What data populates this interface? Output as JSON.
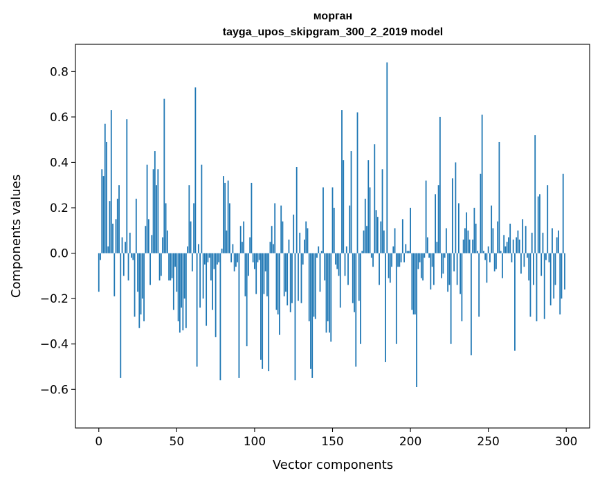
{
  "chart_data": {
    "type": "bar",
    "title": "морган",
    "subtitle": "tayga_upos_skipgram_300_2_2019 model",
    "xlabel": "Vector components",
    "ylabel": "Components values",
    "xlim": [
      -15,
      315
    ],
    "ylim": [
      -0.77,
      0.92
    ],
    "xticks": [
      0,
      50,
      100,
      150,
      200,
      250,
      300
    ],
    "xtick_labels": [
      "0",
      "50",
      "100",
      "150",
      "200",
      "250",
      "300"
    ],
    "yticks": [
      -0.6,
      -0.4,
      -0.2,
      0.0,
      0.2,
      0.4,
      0.6,
      0.8
    ],
    "ytick_labels": [
      "−0.6",
      "−0.4",
      "−0.2",
      "0.0",
      "0.2",
      "0.4",
      "0.6",
      "0.8"
    ],
    "color": "#1f77b4",
    "values": [
      -0.17,
      -0.03,
      0.37,
      0.34,
      0.57,
      0.49,
      0.03,
      0.23,
      0.63,
      0.13,
      -0.19,
      0.15,
      0.24,
      0.3,
      -0.55,
      0.07,
      -0.1,
      0.05,
      0.59,
      -0.12,
      0.09,
      -0.02,
      -0.03,
      -0.28,
      0.24,
      -0.17,
      -0.33,
      -0.27,
      -0.2,
      -0.3,
      0.12,
      0.39,
      0.15,
      -0.14,
      0.08,
      0.37,
      0.45,
      0.3,
      0.37,
      -0.12,
      -0.1,
      0.07,
      0.68,
      0.22,
      0.1,
      -0.12,
      -0.12,
      -0.11,
      -0.25,
      -0.06,
      -0.17,
      -0.3,
      -0.35,
      -0.24,
      -0.34,
      -0.2,
      -0.33,
      0.03,
      0.3,
      0.14,
      -0.08,
      0.22,
      0.73,
      -0.5,
      0.04,
      -0.24,
      0.39,
      -0.2,
      -0.05,
      -0.32,
      -0.04,
      -0.02,
      -0.12,
      -0.25,
      -0.07,
      -0.37,
      -0.05,
      -0.04,
      -0.56,
      0.02,
      0.34,
      0.31,
      0.1,
      0.32,
      0.22,
      -0.04,
      0.04,
      -0.08,
      -0.06,
      -0.04,
      -0.55,
      0.12,
      0.05,
      0.14,
      -0.19,
      -0.41,
      -0.1,
      0.07,
      0.31,
      -0.04,
      -0.07,
      -0.18,
      -0.04,
      -0.03,
      -0.47,
      -0.51,
      -0.18,
      -0.08,
      -0.19,
      -0.52,
      0.05,
      0.12,
      0.04,
      0.22,
      -0.25,
      -0.27,
      -0.36,
      0.21,
      0.14,
      -0.19,
      -0.17,
      -0.23,
      0.06,
      -0.26,
      -0.22,
      0.17,
      -0.56,
      0.38,
      -0.21,
      0.09,
      -0.22,
      -0.05,
      0.06,
      0.14,
      0.11,
      -0.3,
      -0.51,
      -0.55,
      -0.28,
      -0.29,
      -0.02,
      0.03,
      -0.17,
      0.01,
      0.29,
      -0.12,
      -0.35,
      -0.3,
      -0.35,
      -0.39,
      0.29,
      0.2,
      -0.05,
      -0.07,
      -0.1,
      -0.24,
      0.63,
      0.41,
      -0.1,
      0.03,
      -0.14,
      0.21,
      0.45,
      -0.22,
      -0.26,
      -0.5,
      0.62,
      -0.21,
      -0.4,
      0.01,
      0.1,
      0.24,
      0.12,
      0.41,
      0.29,
      -0.02,
      -0.06,
      0.48,
      0.19,
      0.16,
      -0.14,
      0.14,
      0.37,
      0.1,
      -0.48,
      0.84,
      -0.11,
      -0.13,
      -0.06,
      0.03,
      0.11,
      -0.4,
      -0.06,
      -0.06,
      -0.04,
      0.15,
      -0.04,
      0.04,
      0.01,
      0.01,
      0.2,
      -0.25,
      -0.27,
      -0.27,
      -0.59,
      -0.07,
      -0.04,
      -0.11,
      -0.12,
      -0.02,
      0.32,
      0.07,
      -0.02,
      -0.16,
      -0.06,
      -0.14,
      0.26,
      0.05,
      0.3,
      0.6,
      -0.11,
      -0.09,
      -0.02,
      0.11,
      -0.17,
      -0.14,
      -0.4,
      0.33,
      -0.08,
      0.4,
      -0.14,
      0.22,
      -0.18,
      -0.3,
      0.06,
      0.11,
      0.18,
      0.1,
      0.06,
      -0.45,
      0.06,
      0.2,
      0.13,
      0.01,
      -0.28,
      0.35,
      0.61,
      0.01,
      -0.03,
      -0.13,
      0.03,
      -0.04,
      0.21,
      0.11,
      -0.08,
      -0.07,
      0.14,
      0.49,
      0.01,
      -0.11,
      0.08,
      0.03,
      0.05,
      0.07,
      0.13,
      -0.04,
      0.06,
      -0.43,
      0.07,
      0.1,
      0.06,
      -0.09,
      0.15,
      -0.06,
      0.12,
      -0.02,
      -0.12,
      -0.28,
      0.09,
      -0.14,
      0.52,
      -0.3,
      0.25,
      0.26,
      -0.1,
      0.09,
      -0.29,
      -0.03,
      0.3,
      -0.04,
      -0.23,
      0.11,
      -0.2,
      -0.14,
      0.07,
      0.1,
      -0.27,
      -0.2,
      0.35,
      -0.16
    ]
  }
}
